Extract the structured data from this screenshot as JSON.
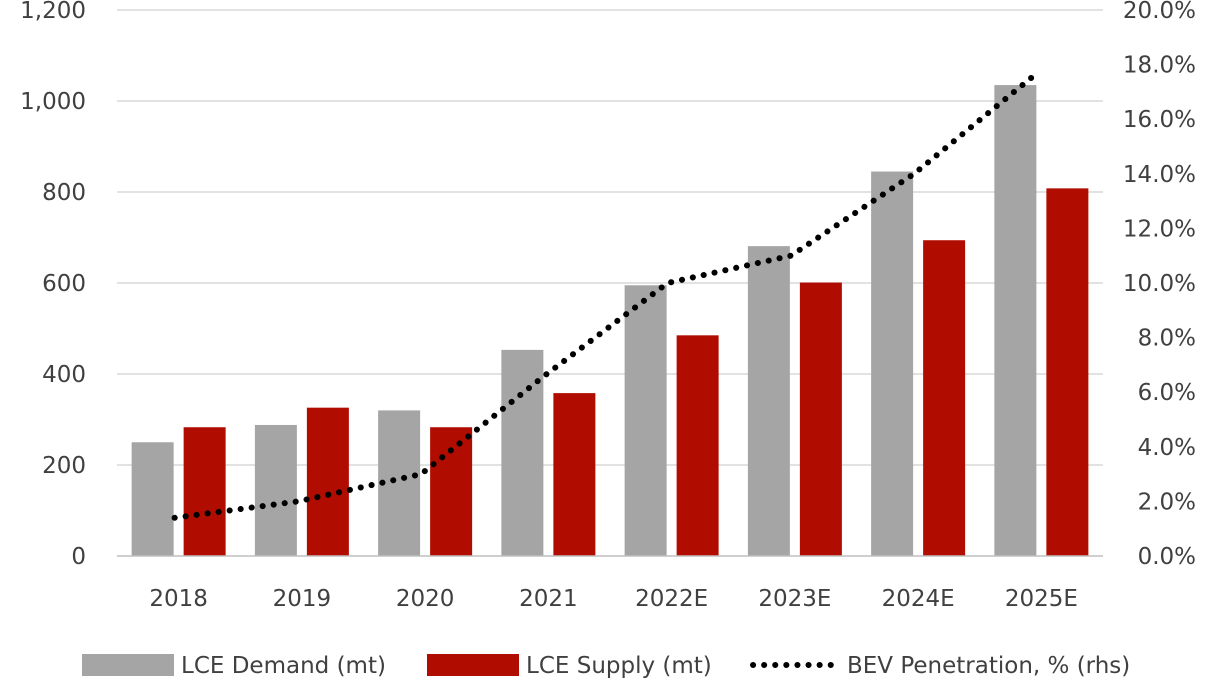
{
  "chart_data": {
    "type": "bar",
    "categories": [
      "2018",
      "2019",
      "2020",
      "2021",
      "2022E",
      "2023E",
      "2024E",
      "2025E"
    ],
    "series": [
      {
        "name": "LCE Demand (mt)",
        "kind": "bar",
        "axis": "left",
        "color": "#a5a5a5",
        "values": [
          250,
          288,
          320,
          453,
          595,
          681,
          845,
          1035
        ]
      },
      {
        "name": "LCE Supply (mt)",
        "kind": "bar",
        "axis": "left",
        "color": "#b00d00",
        "values": [
          283,
          326,
          283,
          358,
          485,
          601,
          694,
          808
        ]
      },
      {
        "name": "BEV Penetration, % (rhs)",
        "kind": "line",
        "style": "dotted",
        "axis": "right",
        "color": "#000000",
        "values": [
          1.4,
          2.0,
          3.0,
          6.6,
          10.0,
          11.0,
          14.0,
          17.7
        ]
      }
    ],
    "left_axis": {
      "ylim": [
        0,
        1200
      ],
      "ticks": [
        0,
        200,
        400,
        600,
        800,
        1000,
        1200
      ],
      "tick_labels": [
        "0",
        "200",
        "400",
        "600",
        "800",
        "1,000",
        "1,200"
      ]
    },
    "right_axis": {
      "ylim": [
        0,
        20
      ],
      "ticks": [
        0,
        2,
        4,
        6,
        8,
        10,
        12,
        14,
        16,
        18,
        20
      ],
      "tick_labels": [
        "0.0%",
        "2.0%",
        "4.0%",
        "6.0%",
        "8.0%",
        "10.0%",
        "12.0%",
        "14.0%",
        "16.0%",
        "18.0%",
        "20.0%"
      ]
    },
    "title": "",
    "xlabel": "",
    "ylabel": "",
    "grid": true,
    "legend_position": "bottom"
  }
}
